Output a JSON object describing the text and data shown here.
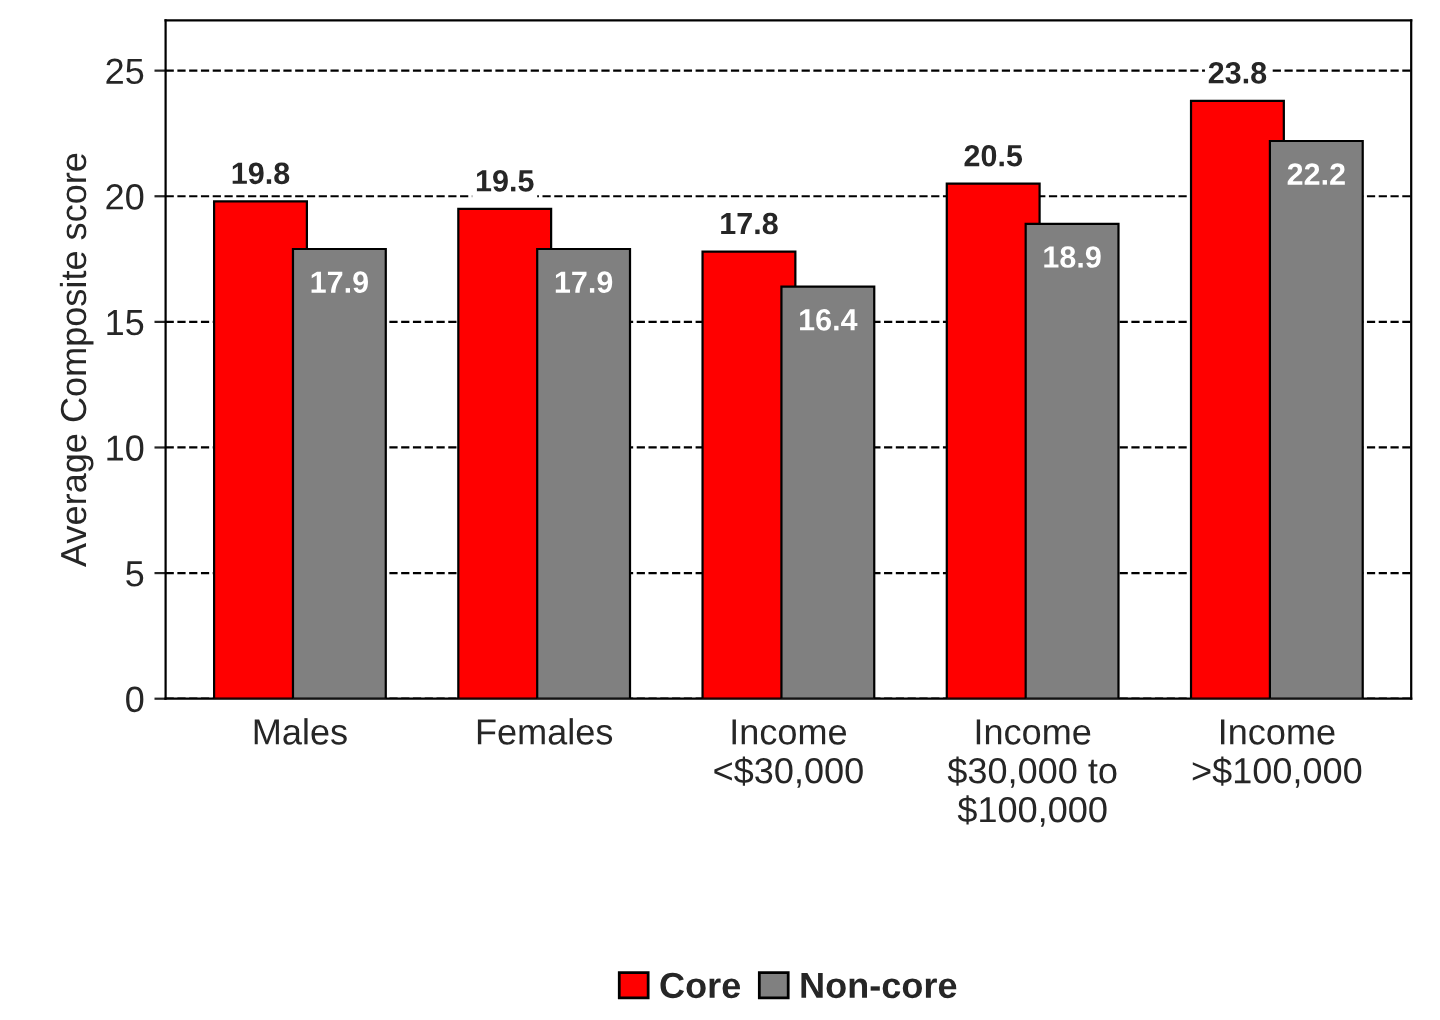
{
  "chart_data": {
    "type": "bar",
    "ylabel": "Average Composite score",
    "categories": [
      "Males",
      "Females",
      "Income\n<$30,000",
      "Income\n$30,000 to\n$100,000",
      "Income\n>$100,000"
    ],
    "series": [
      {
        "name": "Core",
        "color": "#ff0000",
        "values": [
          19.8,
          19.5,
          17.8,
          20.5,
          23.8
        ]
      },
      {
        "name": "Non-core",
        "color": "#808080",
        "values": [
          17.9,
          17.9,
          16.4,
          18.9,
          22.2
        ]
      }
    ],
    "ylim": [
      0,
      27
    ],
    "yticks": [
      0,
      5,
      10,
      15,
      20,
      25
    ],
    "grid": "y",
    "legend": "bottom",
    "data_labels": true
  }
}
